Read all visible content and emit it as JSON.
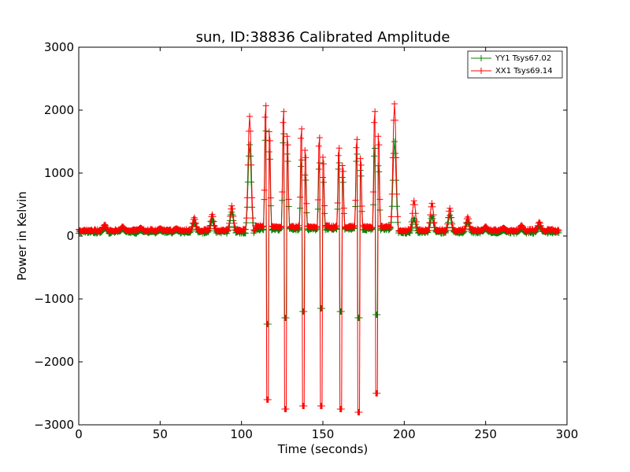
{
  "chart_data": {
    "type": "line",
    "title": "sun, ID:38836 Calibrated Amplitude",
    "xlabel": "Time (seconds)",
    "ylabel": "Power in Kelvin",
    "xlim": [
      0,
      300
    ],
    "ylim": [
      -3000,
      3000
    ],
    "x_ticks": [
      0,
      50,
      100,
      150,
      200,
      250,
      300
    ],
    "y_ticks": [
      -3000,
      -2000,
      -1000,
      0,
      1000,
      2000,
      3000
    ],
    "grid": false,
    "legend_position": "top-right",
    "marker": "+",
    "sample_interval": 0.5,
    "series": [
      {
        "name": "YY1 Tsys67.02",
        "color": "#008000",
        "baseline": 60,
        "mid_baseline": 110,
        "peaks": [
          {
            "x": 16,
            "y": 130
          },
          {
            "x": 27,
            "y": 110
          },
          {
            "x": 38,
            "y": 90
          },
          {
            "x": 50,
            "y": 90
          },
          {
            "x": 60,
            "y": 90
          },
          {
            "x": 71,
            "y": 210
          },
          {
            "x": 82,
            "y": 250
          },
          {
            "x": 94,
            "y": 380
          },
          {
            "x": 105,
            "y": 1450
          },
          {
            "x": 194,
            "y": 1500
          },
          {
            "x": 206,
            "y": 280
          },
          {
            "x": 217,
            "y": 310
          },
          {
            "x": 228,
            "y": 330
          },
          {
            "x": 239,
            "y": 220
          },
          {
            "x": 250,
            "y": 110
          },
          {
            "x": 261,
            "y": 90
          },
          {
            "x": 272,
            "y": 110
          },
          {
            "x": 283,
            "y": 160
          }
        ],
        "bursts": [
          {
            "x": 116,
            "y_max": 1800,
            "y_min": -1400
          },
          {
            "x": 127,
            "y_max": 1750,
            "y_min": -1300
          },
          {
            "x": 138,
            "y_max": 1300,
            "y_min": -1200
          },
          {
            "x": 149,
            "y_max": 1250,
            "y_min": -1150
          },
          {
            "x": 161,
            "y_max": 1250,
            "y_min": -1200
          },
          {
            "x": 172,
            "y_max": 1400,
            "y_min": -1300
          },
          {
            "x": 183,
            "y_max": 1500,
            "y_min": -1250
          }
        ]
      },
      {
        "name": "XX1 Tsys69.14",
        "color": "#ff0000",
        "baseline": 90,
        "mid_baseline": 150,
        "peaks": [
          {
            "x": 16,
            "y": 180
          },
          {
            "x": 27,
            "y": 150
          },
          {
            "x": 38,
            "y": 130
          },
          {
            "x": 50,
            "y": 120
          },
          {
            "x": 60,
            "y": 120
          },
          {
            "x": 71,
            "y": 290
          },
          {
            "x": 82,
            "y": 340
          },
          {
            "x": 94,
            "y": 480
          },
          {
            "x": 105,
            "y": 1900
          },
          {
            "x": 194,
            "y": 2100
          },
          {
            "x": 206,
            "y": 560
          },
          {
            "x": 217,
            "y": 520
          },
          {
            "x": 228,
            "y": 440
          },
          {
            "x": 239,
            "y": 300
          },
          {
            "x": 250,
            "y": 150
          },
          {
            "x": 261,
            "y": 130
          },
          {
            "x": 272,
            "y": 170
          },
          {
            "x": 283,
            "y": 220
          }
        ],
        "bursts": [
          {
            "x": 116,
            "y_max": 2230,
            "y_min": -2600
          },
          {
            "x": 127,
            "y_max": 2130,
            "y_min": -2750
          },
          {
            "x": 138,
            "y_max": 1830,
            "y_min": -2700
          },
          {
            "x": 149,
            "y_max": 1680,
            "y_min": -2700
          },
          {
            "x": 161,
            "y_max": 1500,
            "y_min": -2750
          },
          {
            "x": 172,
            "y_max": 1650,
            "y_min": -2800
          },
          {
            "x": 183,
            "y_max": 2130,
            "y_min": -2500
          }
        ]
      }
    ]
  }
}
